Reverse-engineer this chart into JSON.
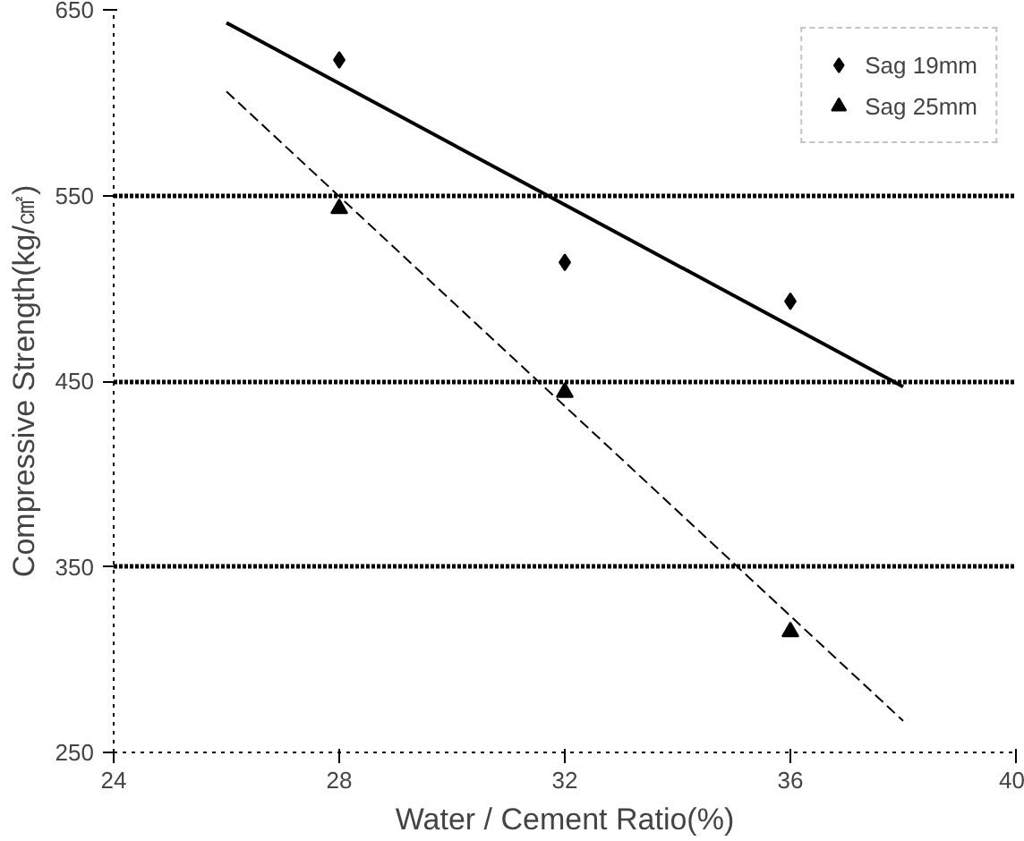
{
  "chart_data": {
    "type": "scatter",
    "xlabel": "Water / Cement Ratio(%)",
    "ylabel": "Compressive Strength(kg/㎠)",
    "xlim": [
      24,
      40
    ],
    "xticks": [
      24,
      28,
      32,
      36,
      40
    ],
    "ylim": [
      250,
      650
    ],
    "yticks": [
      250,
      350,
      450,
      550,
      650
    ],
    "grid": "y",
    "legend": "top right",
    "series": [
      {
        "name": "Sag 19mm",
        "color": "#000000",
        "marker": "diamond",
        "x": [
          28,
          32,
          36
        ],
        "values": [
          623,
          514,
          493
        ]
      },
      {
        "name": "Sag 25mm",
        "color": "#000000",
        "marker": "triangle",
        "x": [
          28,
          32,
          36
        ],
        "values": [
          543,
          444,
          315
        ]
      },
      {
        "type": "line",
        "color": "#000000",
        "marker": "none",
        "line_style": "solid",
        "x": [
          26,
          38
        ],
        "values": [
          643,
          447
        ]
      },
      {
        "type": "line",
        "color": "#000000",
        "marker": "none",
        "line_style": "dashed",
        "x": [
          26,
          38
        ],
        "values": [
          606,
          267
        ]
      }
    ]
  }
}
